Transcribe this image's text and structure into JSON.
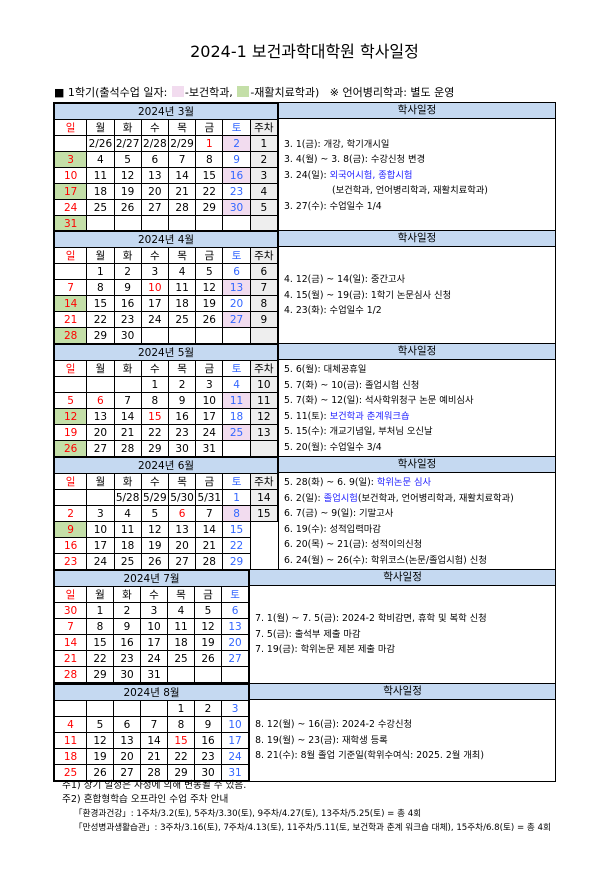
{
  "title": "2024-1 보건과학대학원 학사일정",
  "legend": {
    "bullet": "■",
    "prefix": "1학기(출석수업 일자:",
    "pink_label": "-보건학과,",
    "green_label": "-재활치료학과)",
    "note": "※ 언어병리학과: 별도 운영",
    "colors": {
      "pink": "#f2dcef",
      "green": "#c4dfa8",
      "header": "#c5d9f1",
      "week_col": "#eeeeee"
    }
  },
  "schedule_header": "학사일정",
  "weekdays": [
    "일",
    "월",
    "화",
    "수",
    "목",
    "금",
    "토",
    "주차"
  ],
  "months": [
    {
      "title": "2024년 3월",
      "show_weekdays": true,
      "show_week": true,
      "rows": [
        [
          "",
          "2/26",
          "2/27",
          "2/28",
          "2/29",
          "1",
          "2"
        ],
        [
          "3",
          "4",
          "5",
          "6",
          "7",
          "8",
          "9"
        ],
        [
          "10",
          "11",
          "12",
          "13",
          "14",
          "15",
          "16"
        ],
        [
          "17",
          "18",
          "19",
          "20",
          "21",
          "22",
          "23"
        ],
        [
          "24",
          "25",
          "26",
          "27",
          "28",
          "29",
          "30"
        ],
        [
          "31",
          "",
          "",
          "",
          "",
          "",
          ""
        ]
      ],
      "weeks": [
        "1",
        "2",
        "3",
        "4",
        "5",
        ""
      ],
      "holidays": [
        "1"
      ],
      "pink": [
        "2",
        "16",
        "30"
      ],
      "green": [
        "3",
        "17",
        "31"
      ],
      "events": [
        [
          {
            "t": "3. 1(금): 개강, 학기개시일"
          }
        ],
        [
          {
            "t": "3. 4(월) ~ 3. 8(금): 수강신청 변경"
          }
        ],
        [
          {
            "t": "3. 24(일): "
          },
          {
            "t": "외국어시험, 종합시험",
            "b": true
          }
        ],
        [
          {
            "t": "(보건학과, 언어병리학과, 재활치료학과)",
            "ind": true
          }
        ],
        [
          {
            "t": "3. 27(수): 수업일수 1/4"
          }
        ]
      ]
    },
    {
      "title": "2024년 4월",
      "show_weekdays": true,
      "show_week": true,
      "rows": [
        [
          "",
          "1",
          "2",
          "3",
          "4",
          "5",
          "6"
        ],
        [
          "7",
          "8",
          "9",
          "10",
          "11",
          "12",
          "13"
        ],
        [
          "14",
          "15",
          "16",
          "17",
          "18",
          "19",
          "20"
        ],
        [
          "21",
          "22",
          "23",
          "24",
          "25",
          "26",
          "27"
        ],
        [
          "28",
          "29",
          "30",
          "",
          "",
          "",
          ""
        ]
      ],
      "weeks": [
        "6",
        "7",
        "8",
        "9",
        ""
      ],
      "holidays": [
        "10"
      ],
      "pink": [
        "13",
        "27"
      ],
      "green": [
        "14",
        "28"
      ],
      "events": [
        [
          {
            "t": "4. 12(금) ~ 14(일): 중간고사"
          }
        ],
        [
          {
            "t": "4. 15(월) ~ 19(금): 1학기 논문심사 신청"
          }
        ],
        [
          {
            "t": "4. 23(화): 수업일수 1/2"
          }
        ]
      ]
    },
    {
      "title": "2024년 5월",
      "show_weekdays": true,
      "show_week": true,
      "rows": [
        [
          "",
          "",
          "",
          "1",
          "2",
          "3",
          "4"
        ],
        [
          "5",
          "6",
          "7",
          "8",
          "9",
          "10",
          "11"
        ],
        [
          "12",
          "13",
          "14",
          "15",
          "16",
          "17",
          "18"
        ],
        [
          "19",
          "20",
          "21",
          "22",
          "23",
          "24",
          "25"
        ],
        [
          "26",
          "27",
          "28",
          "29",
          "30",
          "31",
          ""
        ]
      ],
      "weeks": [
        "10",
        "11",
        "12",
        "13",
        ""
      ],
      "holidays": [
        "6",
        "15"
      ],
      "pink": [
        "11",
        "25"
      ],
      "green": [
        "12",
        "26"
      ],
      "events": [
        [
          {
            "t": "5. 6(월): 대체공휴일"
          }
        ],
        [
          {
            "t": "5. 7(화) ~ 10(금): 졸업시험 신청"
          }
        ],
        [
          {
            "t": "5. 7(화) ~ 12(일): 석사학위청구 논문 예비심사"
          }
        ],
        [
          {
            "t": "5. 11(토): "
          },
          {
            "t": "보건학과 춘계워크숍",
            "b": true
          }
        ],
        [
          {
            "t": "5. 15(수): 개교기념일, 부처님 오신날"
          }
        ],
        [
          {
            "t": "5. 20(월): 수업일수 3/4"
          }
        ]
      ]
    },
    {
      "title": "2024년 6월",
      "show_weekdays": true,
      "show_week": true,
      "rows": [
        [
          "",
          "",
          "5/28",
          "5/29",
          "5/30",
          "5/31",
          "1"
        ],
        [
          "2",
          "3",
          "4",
          "5",
          "6",
          "7",
          "8"
        ],
        [
          "9",
          "10",
          "11",
          "12",
          "13",
          "14",
          "15"
        ],
        [
          "16",
          "17",
          "18",
          "19",
          "20",
          "21",
          "22"
        ],
        [
          "23",
          "24",
          "25",
          "26",
          "27",
          "28",
          "29"
        ]
      ],
      "weeks": [
        "14",
        "15",
        null,
        null,
        null
      ],
      "holidays": [
        "6"
      ],
      "pink": [
        "8"
      ],
      "green": [
        "9"
      ],
      "events": [
        [
          {
            "t": "5. 28(화) ~ 6. 9(일): "
          },
          {
            "t": "학위논문 심사",
            "b": true
          }
        ],
        [
          {
            "t": "6. 2(일): "
          },
          {
            "t": "졸업시험",
            "b": true
          },
          {
            "t": "(보건학과, 언어병리학과, 재활치료학과)"
          }
        ],
        [
          {
            "t": "6. 7(금) ~ 9(일): 기말고사"
          }
        ],
        [
          {
            "t": "6. 19(수): 성적입력마감"
          }
        ],
        [
          {
            "t": "6. 20(목) ~ 21(금): 성적이의신청"
          }
        ],
        [
          {
            "t": "6. 24(월) ~ 26(수): 학위코스(논문/졸업시험) 신청"
          }
        ]
      ]
    },
    {
      "title": "2024년 7월",
      "show_weekdays": true,
      "show_week": false,
      "rows": [
        [
          "30",
          "1",
          "2",
          "3",
          "4",
          "5",
          "6"
        ],
        [
          "7",
          "8",
          "9",
          "10",
          "11",
          "12",
          "13"
        ],
        [
          "14",
          "15",
          "16",
          "17",
          "18",
          "19",
          "20"
        ],
        [
          "21",
          "22",
          "23",
          "24",
          "25",
          "26",
          "27"
        ],
        [
          "28",
          "29",
          "30",
          "31",
          "",
          "",
          ""
        ]
      ],
      "holidays": [],
      "pink": [],
      "green": [],
      "events": [
        [
          {
            "t": "7. 1(월) ~ 7. 5(금): 2024-2 학비감면, 휴학 및 복학 신청"
          }
        ],
        [
          {
            "t": "7. 5(금): 출석부 제출 마감"
          }
        ],
        [
          {
            "t": "7. 19(금): 학위논문 제본 제출 마감"
          }
        ]
      ]
    },
    {
      "title": "2024년 8월",
      "show_weekdays": false,
      "show_week": false,
      "rows": [
        [
          "",
          "",
          "",
          "",
          "1",
          "2",
          "3"
        ],
        [
          "4",
          "5",
          "6",
          "7",
          "8",
          "9",
          "10"
        ],
        [
          "11",
          "12",
          "13",
          "14",
          "15",
          "16",
          "17"
        ],
        [
          "18",
          "19",
          "20",
          "21",
          "22",
          "23",
          "24"
        ],
        [
          "25",
          "26",
          "27",
          "28",
          "29",
          "30",
          "31"
        ]
      ],
      "holidays": [
        "15"
      ],
      "pink": [],
      "green": [],
      "events": [
        [
          {
            "t": "8. 12(월) ~ 16(금): 2024-2 수강신청"
          }
        ],
        [
          {
            "t": "8. 19(월) ~ 23(금): 재학생 등록"
          }
        ],
        [
          {
            "t": "8. 21(수): 8월 졸업 기준일(학위수여식: 2025. 2월 개최)"
          }
        ]
      ]
    }
  ],
  "notes": {
    "n1": "주1) 상기 일정은 사정에 의해 변동될 수 있음.",
    "n2": "주2) 혼합형학습 오프라인 수업 주차 안내",
    "n2a": "「환경과건강」: 1주차/3.2(토), 5주차/3.30(토), 9주차/4.27(토), 13주차/5.25(토) = 총 4회",
    "n2b": "「만성병과생활습관」: 3주차/3.16(토), 7주차/4.13(토), 11주차/5.11(토, 보건학과 춘계 워크숍 대체), 15주차/6.8(토) = 총 4회"
  }
}
